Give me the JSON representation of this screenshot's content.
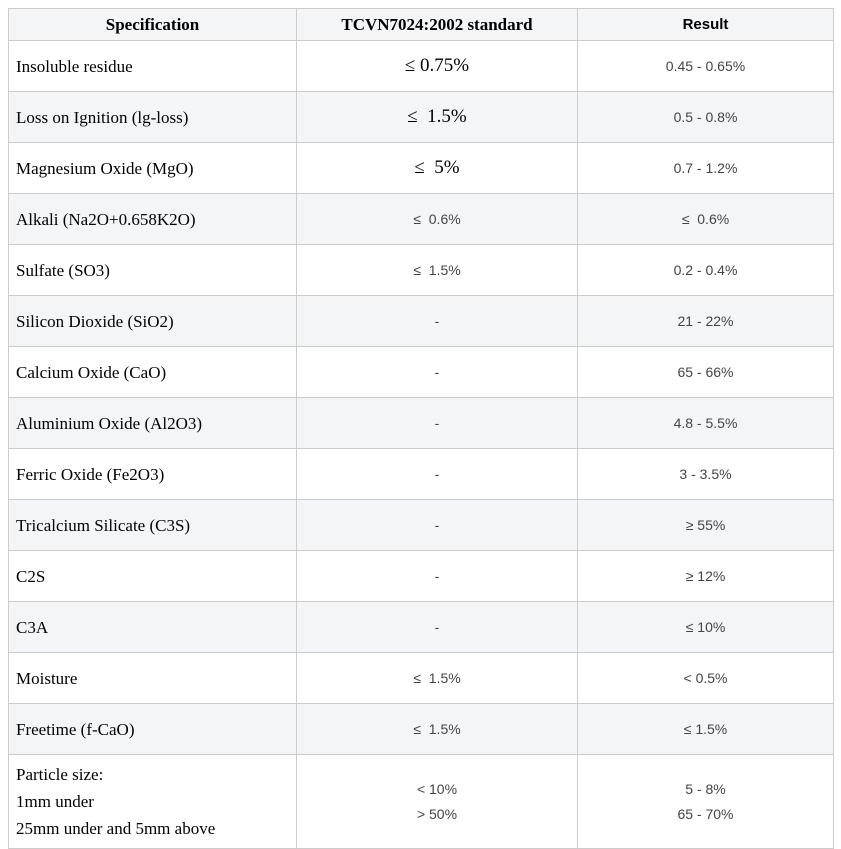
{
  "colors": {
    "stripe_background": "#f4f5f6",
    "border": "#cccccc",
    "serif_text": "#000000",
    "sans_text": "#444444"
  },
  "table": {
    "headers": [
      {
        "label": "Specification"
      },
      {
        "label": "TCVN7024:2002 standard"
      },
      {
        "label": "Result"
      }
    ],
    "rows": [
      {
        "spec": "Insoluble residue",
        "standard": "≤ 0.75%",
        "standard_font": "serif",
        "result": "0.45 - 0.65%"
      },
      {
        "spec": "Loss on Ignition (lg-loss)",
        "standard": "≤  1.5%",
        "standard_font": "serif",
        "result": "0.5 - 0.8%"
      },
      {
        "spec": "Magnesium Oxide (MgO)",
        "standard": "≤  5%",
        "standard_font": "serif",
        "result": "0.7 - 1.2%"
      },
      {
        "spec": "Alkali (Na2O+0.658K2O)",
        "standard": "≤  0.6%",
        "standard_font": "sans",
        "result": "≤  0.6%"
      },
      {
        "spec": "Sulfate (SO3)",
        "standard": "≤  1.5%",
        "standard_font": "sans",
        "result": "0.2 - 0.4%"
      },
      {
        "spec": "Silicon Dioxide (SiO2)",
        "standard": "-",
        "standard_font": "sans",
        "result": "21 - 22%"
      },
      {
        "spec": "Calcium Oxide (CaO)",
        "standard": "-",
        "standard_font": "sans",
        "result": "65 - 66%"
      },
      {
        "spec": "Aluminium Oxide (Al2O3)",
        "standard": "-",
        "standard_font": "sans",
        "result": "4.8 - 5.5%"
      },
      {
        "spec": "Ferric Oxide (Fe2O3)",
        "standard": "-",
        "standard_font": "sans",
        "result": "3 - 3.5%"
      },
      {
        "spec": "Tricalcium Silicate (C3S)",
        "standard": "-",
        "standard_font": "sans",
        "result": "≥ 55%"
      },
      {
        "spec": "C2S",
        "standard": "-",
        "standard_font": "sans",
        "result": "≥ 12%"
      },
      {
        "spec": "C3A",
        "standard": "-",
        "standard_font": "sans",
        "result": "≤ 10%"
      },
      {
        "spec": "Moisture",
        "standard": "≤  1.5%",
        "standard_font": "sans",
        "result": "< 0.5%"
      },
      {
        "spec": "Freetime (f-CaO)",
        "standard": "≤  1.5%",
        "standard_font": "sans",
        "result": "≤ 1.5%"
      },
      {
        "spec": [
          "Particle size:",
          "1mm under",
          "25mm under and 5mm above"
        ],
        "standard": [
          "< 10%",
          "> 50%"
        ],
        "standard_font": "sans",
        "result": [
          "5 - 8%",
          "65 - 70%"
        ]
      }
    ]
  }
}
